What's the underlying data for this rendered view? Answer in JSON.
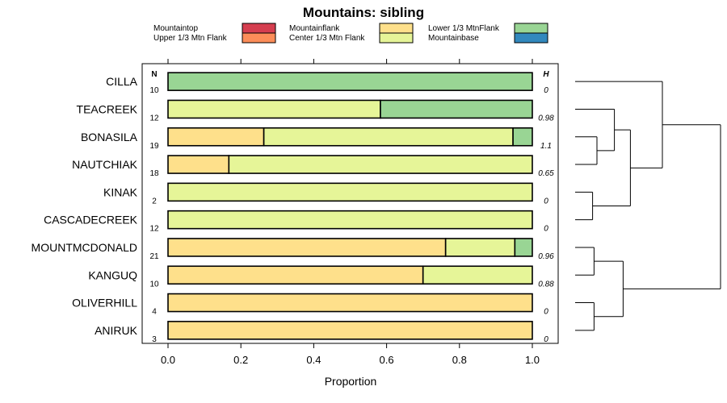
{
  "chart_data": {
    "type": "bar",
    "orientation": "horizontal",
    "stacked": true,
    "title": "Mountains: sibling",
    "xlabel": "Proportion",
    "xlim": [
      0,
      1
    ],
    "xticks": [
      "0.0",
      "0.2",
      "0.4",
      "0.6",
      "0.8",
      "1.0"
    ],
    "n_header": "N",
    "h_header": "H",
    "legend": [
      {
        "name": "Mountaintop",
        "color": "#D53E4F"
      },
      {
        "name": "Upper 1/3 Mtn Flank",
        "color": "#FC8D59"
      },
      {
        "name": "Mountainflank",
        "color": "#FEE08B"
      },
      {
        "name": "Center 1/3 Mtn Flank",
        "color": "#E6F598"
      },
      {
        "name": "Lower 1/3 MtnFlank",
        "color": "#99D594"
      },
      {
        "name": "Mountainbase",
        "color": "#3288BD"
      }
    ],
    "categories": [
      "CILLA",
      "TEACREEK",
      "BONASILA",
      "NAUTCHIAK",
      "KINAK",
      "CASCADECREEK",
      "MOUNTMCDONALD",
      "KANGUQ",
      "OLIVERHILL",
      "ANIRUK"
    ],
    "n": [
      "10",
      "12",
      "19",
      "18",
      "2",
      "12",
      "21",
      "10",
      "4",
      "3"
    ],
    "h": [
      "0",
      "0.98",
      "1.1",
      "0.65",
      "0",
      "0",
      "0.96",
      "0.88",
      "0",
      "0"
    ],
    "series": [
      {
        "name": "Mountaintop",
        "values": [
          0,
          0,
          0,
          0,
          0,
          0,
          0,
          0,
          0,
          0
        ]
      },
      {
        "name": "Upper 1/3 Mtn Flank",
        "values": [
          0,
          0,
          0,
          0,
          0,
          0,
          0,
          0,
          0,
          0
        ]
      },
      {
        "name": "Mountainflank",
        "values": [
          0,
          0,
          0.263,
          0.167,
          0,
          0,
          0.762,
          0.7,
          1,
          1
        ]
      },
      {
        "name": "Center 1/3 Mtn Flank",
        "values": [
          0,
          0.583,
          0.684,
          0.833,
          1,
          1,
          0.19,
          0.3,
          0,
          0
        ]
      },
      {
        "name": "Lower 1/3 MtnFlank",
        "values": [
          1,
          0.417,
          0.053,
          0,
          0,
          0,
          0.048,
          0,
          0,
          0
        ]
      },
      {
        "name": "Mountainbase",
        "values": [
          0,
          0,
          0,
          0,
          0,
          0,
          0,
          0,
          0,
          0
        ]
      }
    ],
    "dendrogram": {
      "nodes": [
        {
          "id": "a",
          "children": [
            2,
            3
          ],
          "height": 0.15
        },
        {
          "id": "b",
          "children": [
            "a",
            1
          ],
          "height": 0.27
        },
        {
          "id": "c",
          "children": [
            4,
            5
          ],
          "height": 0.12
        },
        {
          "id": "d",
          "children": [
            "b",
            "c"
          ],
          "height": 0.38
        },
        {
          "id": "e",
          "children": [
            "d",
            0
          ],
          "height": 0.6
        },
        {
          "id": "f",
          "children": [
            6,
            7
          ],
          "height": 0.13
        },
        {
          "id": "g",
          "children": [
            8,
            9
          ],
          "height": 0.13
        },
        {
          "id": "h",
          "children": [
            "f",
            "g"
          ],
          "height": 0.33
        },
        {
          "id": "i",
          "children": [
            "e",
            "h"
          ],
          "height": 1.0
        }
      ]
    }
  }
}
